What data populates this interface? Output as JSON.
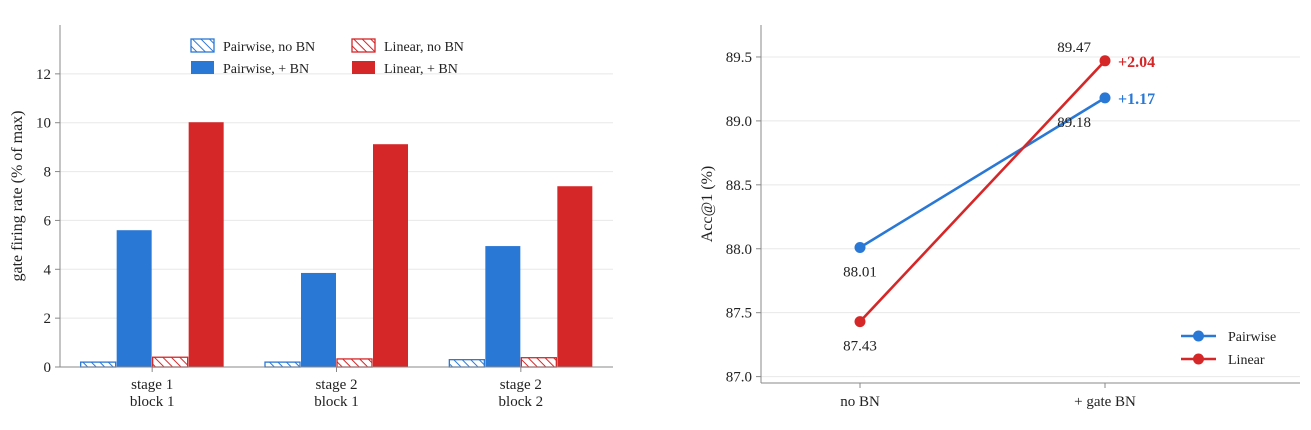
{
  "chart_data": [
    {
      "type": "bar",
      "ylabel": "gate firing rate (% of max)",
      "xlabel": "",
      "ylim": [
        0,
        14
      ],
      "yticks": [
        0,
        2,
        4,
        6,
        8,
        10,
        12
      ],
      "grid": "horizontal",
      "legend_placement": "top",
      "categories": [
        [
          "stage 1",
          "block 1"
        ],
        [
          "stage 2",
          "block 1"
        ],
        [
          "stage 2",
          "block 2"
        ]
      ],
      "series": [
        {
          "name": "Pairwise, no BN",
          "values": [
            0.2,
            0.2,
            0.3
          ],
          "color": "#2a78d6",
          "hatched": true
        },
        {
          "name": "Pairwise, + BN",
          "values": [
            5.6,
            3.85,
            4.95
          ],
          "color": "#2a78d6",
          "hatched": false
        },
        {
          "name": "Linear, no BN",
          "values": [
            0.4,
            0.33,
            0.38
          ],
          "color": "#d62728",
          "hatched": true
        },
        {
          "name": "Linear, + BN",
          "values": [
            10.02,
            9.12,
            7.4
          ],
          "color": "#d62728",
          "hatched": false
        }
      ]
    },
    {
      "type": "line",
      "ylabel": "Acc@1 (%)",
      "xlabel": "",
      "ylim": [
        86.95,
        89.75
      ],
      "yticks": [
        "87.0",
        "87.5",
        "88.0",
        "88.5",
        "89.0",
        "89.5"
      ],
      "grid": "horizontal",
      "legend_placement": "bottom-right",
      "categories": [
        "no BN",
        "+ gate BN"
      ],
      "series": [
        {
          "name": "Pairwise",
          "values": [
            88.01,
            89.18
          ],
          "labels": [
            "88.01",
            "89.18"
          ],
          "delta": "+1.17",
          "color": "#2a78d6"
        },
        {
          "name": "Linear",
          "values": [
            87.43,
            89.47
          ],
          "labels": [
            "87.43",
            "89.47"
          ],
          "delta": "+2.04",
          "color": "#d62728"
        }
      ]
    }
  ]
}
